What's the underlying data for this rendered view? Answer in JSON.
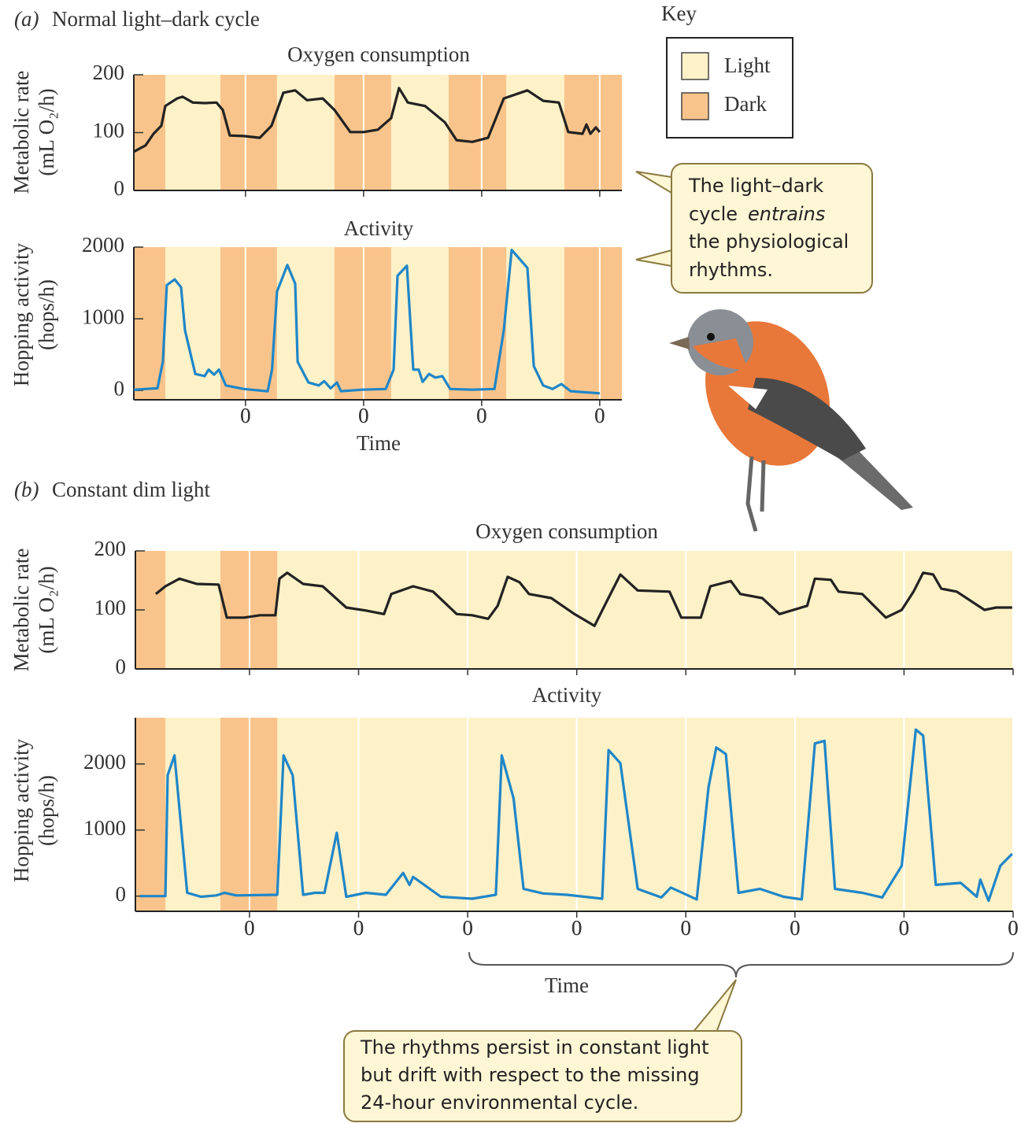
{
  "panels": [
    {
      "letter": "(a)",
      "text": "Normal light–dark cycle"
    },
    {
      "letter": "(b)",
      "text": "Constant dim light"
    }
  ],
  "key": {
    "title": "Key",
    "items": [
      {
        "label": "Light",
        "color": "#fdf1c8"
      },
      {
        "label": "Dark",
        "color": "#f9c48b"
      }
    ]
  },
  "callouts": [
    {
      "lines": [
        "The light–dark",
        "cycle",
        "entrains",
        "the physiological",
        "rhythms."
      ]
    },
    {
      "lines": [
        "The rhythms persist in constant light",
        "but drift with respect to the missing",
        "24-hour environmental cycle."
      ]
    }
  ],
  "chart_data": [
    {
      "type": "line",
      "title": "Oxygen consumption",
      "y_label": [
        "Metabolic rate",
        "(mL O₂/h)"
      ],
      "color": "#222222",
      "xlim": [
        -22.7,
        76.5
      ],
      "xticks": [
        0,
        {
          "value": 24,
          "label": "0"
        },
        {
          "value": 48,
          "label": "0"
        },
        {
          "value": 72,
          "label": "0"
        }
      ],
      "ylim": [
        0,
        200
      ],
      "yticks": [
        0,
        100,
        200
      ],
      "dark_periods": [
        [
          -22.7,
          -16.3
        ],
        [
          -5.1,
          6.4
        ],
        [
          18.1,
          29.6
        ],
        [
          41.3,
          53
        ],
        [
          64.8,
          76.5
        ]
      ],
      "x": [
        -22.7,
        -20.3,
        -18.7,
        -17.1,
        -16.3,
        -13.9,
        -12.8,
        -10.7,
        -8.3,
        -5.9,
        -4.6,
        -3.2,
        -0.3,
        2.9,
        5.3,
        7.7,
        10.1,
        12.5,
        15.7,
        18.1,
        21.3,
        24,
        26.9,
        29.6,
        31.2,
        33,
        36.5,
        40.5,
        42.9,
        46.1,
        49.3,
        52.5,
        57.3,
        60.5,
        63.7,
        65.6,
        68.5,
        69.3,
        70.1,
        71.2,
        72
      ],
      "values": [
        67,
        78,
        98,
        112,
        146,
        159,
        162,
        152,
        151,
        152,
        139,
        95,
        94,
        91,
        112,
        169,
        173,
        156,
        159,
        139,
        101,
        101,
        105,
        125,
        177,
        152,
        146,
        118,
        87,
        84,
        91,
        159,
        173,
        155,
        152,
        101,
        98,
        114,
        98,
        109,
        101
      ]
    },
    {
      "type": "line",
      "title": "Activity",
      "y_label": [
        "Hopping activity",
        "(hops/h)"
      ],
      "x_label": "Time",
      "color": "#1f86c8",
      "xlim": [
        -22.7,
        76.5
      ],
      "xticks": [
        0,
        {
          "value": 24,
          "label": "0"
        },
        {
          "value": 48,
          "label": "0"
        },
        {
          "value": 72,
          "label": "0"
        }
      ],
      "ylim": [
        -130,
        2000
      ],
      "yticks": [
        0,
        1000,
        2000
      ],
      "dark_periods": [
        [
          -22.7,
          -16.3
        ],
        [
          -5.1,
          6.4
        ],
        [
          18.1,
          29.6
        ],
        [
          41.3,
          53
        ],
        [
          64.8,
          76.5
        ]
      ],
      "x": [
        -22.7,
        -17.9,
        -16.8,
        -16,
        -14.4,
        -13.1,
        -12.3,
        -10.2,
        -8.3,
        -7.5,
        -6.4,
        -5.4,
        -4,
        -0.3,
        4.5,
        5.4,
        6.4,
        8.5,
        10.1,
        10.6,
        12.8,
        14.9,
        16,
        17.3,
        18.6,
        19.4,
        23.7,
        28.5,
        30.1,
        30.9,
        32.8,
        34.1,
        35.2,
        36,
        37.3,
        38.6,
        40,
        41.6,
        46.1,
        50.6,
        52.5,
        54.1,
        57.3,
        58.6,
        60.5,
        62.4,
        64.2,
        66.1,
        72
      ],
      "values": [
        10,
        30,
        400,
        1470,
        1550,
        1440,
        840,
        230,
        200,
        290,
        220,
        290,
        70,
        20,
        -10,
        290,
        1380,
        1750,
        1490,
        400,
        110,
        70,
        130,
        30,
        110,
        -10,
        10,
        20,
        290,
        1600,
        1740,
        290,
        290,
        120,
        230,
        180,
        200,
        20,
        10,
        20,
        840,
        1960,
        1710,
        340,
        70,
        20,
        90,
        -10,
        -40
      ]
    },
    {
      "type": "line",
      "title": "Oxygen consumption",
      "y_label": [
        "Metabolic rate",
        "(mL O₂/h)"
      ],
      "color": "#222222",
      "xlim": [
        -25.1,
        168
      ],
      "xticks": [
        0,
        {
          "value": 24,
          "label": "0"
        },
        {
          "value": 48,
          "label": "0"
        },
        {
          "value": 72,
          "label": "0"
        },
        {
          "value": 96,
          "label": "0"
        },
        {
          "value": 120,
          "label": "0"
        },
        {
          "value": 144,
          "label": "0"
        },
        {
          "value": 168,
          "label": "0"
        }
      ],
      "ylim": [
        0,
        200
      ],
      "yticks": [
        0,
        100,
        200
      ],
      "dark_periods": [
        [
          -25.1,
          -18.5
        ],
        [
          -6.4,
          6.1
        ]
      ],
      "x": [
        -20.6,
        -18.5,
        -15.4,
        -11.6,
        -6.8,
        -5,
        -1.2,
        2.3,
        5.7,
        6.6,
        8.3,
        11.8,
        16.1,
        21.3,
        25.6,
        29.6,
        31.2,
        36,
        40.4,
        45.6,
        49,
        52.5,
        54.6,
        56.8,
        59.4,
        61.5,
        66.4,
        71.5,
        75.9,
        78.5,
        81.6,
        85.4,
        92.4,
        95,
        99.3,
        101.4,
        105.9,
        108,
        112.8,
        116.6,
        122.7,
        124.4,
        127.9,
        129.6,
        134.8,
        140,
        143.5,
        146.1,
        148.2,
        150.4,
        152.2,
        155.6,
        161.7,
        164.3,
        167.8
      ],
      "values": [
        127,
        140,
        153,
        144,
        143,
        87,
        87,
        91,
        91,
        153,
        163,
        144,
        140,
        104,
        99,
        93,
        127,
        140,
        131,
        93,
        91,
        85,
        107,
        156,
        147,
        127,
        120,
        93,
        73,
        113,
        160,
        133,
        131,
        87,
        87,
        140,
        149,
        127,
        120,
        93,
        107,
        153,
        151,
        131,
        127,
        87,
        100,
        131,
        163,
        160,
        136,
        131,
        100,
        104,
        104
      ]
    },
    {
      "type": "line",
      "title": "Activity",
      "y_label": [
        "Hopping activity",
        "(hops/h)"
      ],
      "x_label": "Time",
      "color": "#1f86c8",
      "xlim": [
        -25.1,
        168
      ],
      "xticks": [
        0,
        {
          "value": 24,
          "label": "0"
        },
        {
          "value": 48,
          "label": "0"
        },
        {
          "value": 72,
          "label": "0"
        },
        {
          "value": 96,
          "label": "0"
        },
        {
          "value": 120,
          "label": "0"
        },
        {
          "value": 144,
          "label": "0"
        },
        {
          "value": 168,
          "label": "0"
        }
      ],
      "ylim": [
        -230,
        2700
      ],
      "yticks": [
        0,
        1000,
        2000
      ],
      "dark_periods": [
        [
          -25.1,
          -18.5
        ],
        [
          -6.4,
          6.1
        ]
      ],
      "x": [
        -24.1,
        -18.5,
        -18,
        -16.5,
        -13.7,
        -10.7,
        -7.3,
        -5.5,
        -2.9,
        6.1,
        7.5,
        9.5,
        11.8,
        14.4,
        16.5,
        19.2,
        21.3,
        25.6,
        30,
        33.8,
        35.2,
        36,
        42.1,
        49,
        54.2,
        55.5,
        58.1,
        60.3,
        64.6,
        69.8,
        77.6,
        79,
        81.6,
        85.4,
        90.6,
        92.7,
        98.4,
        101,
        102.7,
        104.8,
        107.6,
        112.3,
        117.5,
        121.5,
        124.4,
        126.5,
        128.8,
        134.8,
        139.2,
        143.5,
        146.6,
        148.2,
        151,
        156.5,
        160,
        160.8,
        162.6,
        165.2,
        167.8
      ],
      "values": [
        0,
        0,
        1830,
        2130,
        50,
        -10,
        10,
        50,
        10,
        20,
        2130,
        1830,
        20,
        50,
        50,
        960,
        -10,
        50,
        20,
        350,
        170,
        290,
        -10,
        -40,
        20,
        2130,
        1480,
        110,
        40,
        20,
        -40,
        2210,
        2010,
        110,
        -20,
        130,
        -50,
        1650,
        2250,
        2150,
        50,
        110,
        -10,
        -50,
        2310,
        2350,
        110,
        50,
        -20,
        460,
        2520,
        2430,
        170,
        200,
        -10,
        250,
        -70,
        460,
        640
      ]
    }
  ]
}
